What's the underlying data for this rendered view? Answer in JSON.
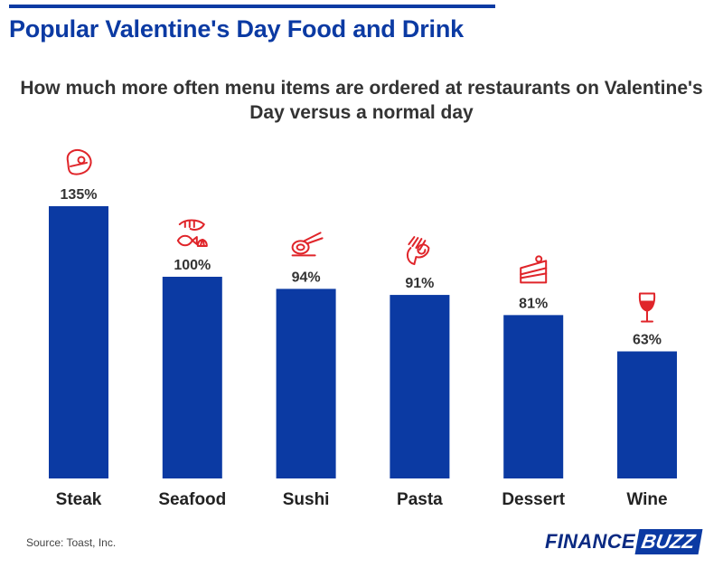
{
  "header": {
    "title": "Popular Valentine's Day Food and Drink"
  },
  "chart_data": {
    "type": "bar",
    "title": "How much more often menu items are ordered at restaurants on Valentine's Day versus a normal day",
    "categories": [
      "Steak",
      "Seafood",
      "Sushi",
      "Pasta",
      "Dessert",
      "Wine"
    ],
    "values": [
      135,
      100,
      94,
      91,
      81,
      63
    ],
    "value_labels": [
      "135%",
      "100%",
      "94%",
      "91%",
      "81%",
      "63%"
    ],
    "icons": [
      "steak-icon",
      "shrimp-fish-icon",
      "sushi-chopsticks-icon",
      "pasta-fork-icon",
      "cake-slice-icon",
      "wine-glass-icon"
    ],
    "ylim": [
      0,
      135
    ],
    "grid": false,
    "legend": "none",
    "bar_color": "#0b3aa3",
    "icon_color": "#e0252a"
  },
  "footer": {
    "source": "Source: Toast, Inc.",
    "brand_part1": "FINANCE",
    "brand_part2": "BUZZ"
  }
}
